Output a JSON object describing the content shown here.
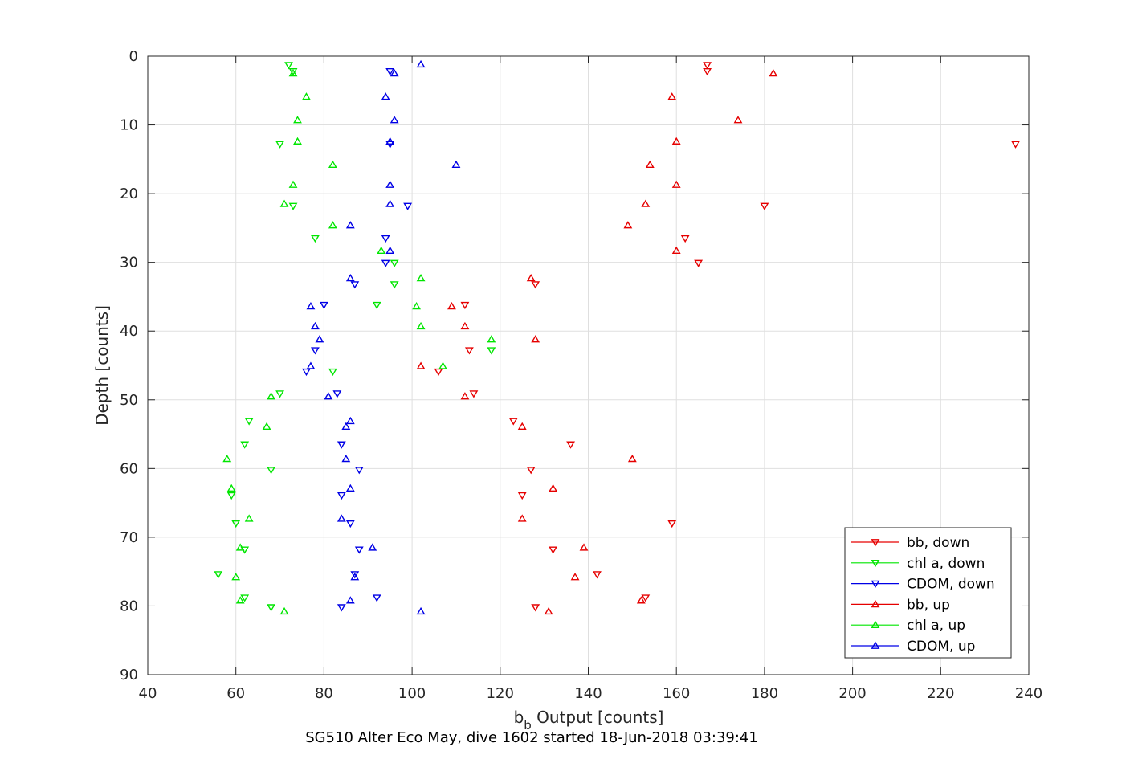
{
  "caption": "SG510 Alter Eco May, dive 1602 started 18-Jun-2018 03:39:41",
  "chart_data": {
    "type": "scatter",
    "xlabel_main": "b",
    "xlabel_sub": "b",
    "xlabel_rest": " Output [counts]",
    "ylabel": "Depth [counts]",
    "xlim": [
      40,
      240
    ],
    "ylim": [
      0,
      90
    ],
    "y_reversed": true,
    "grid": true,
    "xticks": [
      "40",
      "60",
      "80",
      "100",
      "120",
      "140",
      "160",
      "180",
      "200",
      "220",
      "240"
    ],
    "yticks": [
      "0",
      "10",
      "20",
      "30",
      "40",
      "50",
      "60",
      "70",
      "80",
      "90"
    ],
    "legend_position": "bottom-right",
    "series": [
      {
        "name": "bb, down",
        "color": "#e60000",
        "marker": "triangle-down",
        "points": [
          [
            167,
            1.3
          ],
          [
            167,
            2.2
          ],
          [
            237,
            12.8
          ],
          [
            180,
            21.8
          ],
          [
            162,
            26.5
          ],
          [
            165,
            30.1
          ],
          [
            128,
            33.2
          ],
          [
            112,
            36.2
          ],
          [
            113,
            42.8
          ],
          [
            106,
            45.9
          ],
          [
            114,
            49.1
          ],
          [
            123,
            53.1
          ],
          [
            136,
            56.5
          ],
          [
            127,
            60.2
          ],
          [
            125,
            63.9
          ],
          [
            159,
            68.0
          ],
          [
            132,
            71.8
          ],
          [
            142,
            75.4
          ],
          [
            153,
            78.8
          ],
          [
            128,
            80.2
          ]
        ]
      },
      {
        "name": "chl a, down",
        "color": "#00e600",
        "marker": "triangle-down",
        "points": [
          [
            72,
            1.3
          ],
          [
            73,
            2.2
          ],
          [
            70,
            12.8
          ],
          [
            73,
            21.8
          ],
          [
            78,
            26.5
          ],
          [
            96,
            30.1
          ],
          [
            96,
            33.2
          ],
          [
            92,
            36.2
          ],
          [
            118,
            42.8
          ],
          [
            82,
            45.9
          ],
          [
            70,
            49.1
          ],
          [
            63,
            53.1
          ],
          [
            62,
            56.5
          ],
          [
            68,
            60.2
          ],
          [
            59,
            63.9
          ],
          [
            60,
            68.0
          ],
          [
            62,
            71.8
          ],
          [
            56,
            75.4
          ],
          [
            62,
            78.8
          ],
          [
            68,
            80.2
          ]
        ]
      },
      {
        "name": "CDOM, down",
        "color": "#0000e6",
        "marker": "triangle-down",
        "points": [
          [
            95,
            2.2
          ],
          [
            95,
            12.8
          ],
          [
            99,
            21.8
          ],
          [
            94,
            26.5
          ],
          [
            94,
            30.1
          ],
          [
            87,
            33.2
          ],
          [
            80,
            36.2
          ],
          [
            78,
            42.8
          ],
          [
            76,
            45.9
          ],
          [
            83,
            49.1
          ],
          [
            84,
            56.5
          ],
          [
            88,
            60.2
          ],
          [
            84,
            63.9
          ],
          [
            86,
            68.0
          ],
          [
            88,
            71.8
          ],
          [
            87,
            75.4
          ],
          [
            92,
            78.8
          ],
          [
            84,
            80.2
          ]
        ]
      },
      {
        "name": "bb, up",
        "color": "#e60000",
        "marker": "triangle-up",
        "points": [
          [
            182,
            2.5
          ],
          [
            159,
            5.9
          ],
          [
            174,
            9.3
          ],
          [
            160,
            12.4
          ],
          [
            154,
            15.8
          ],
          [
            160,
            18.7
          ],
          [
            153,
            21.5
          ],
          [
            149,
            24.6
          ],
          [
            160,
            28.3
          ],
          [
            127,
            32.3
          ],
          [
            109,
            36.4
          ],
          [
            112,
            39.3
          ],
          [
            128,
            41.2
          ],
          [
            102,
            45.1
          ],
          [
            112,
            49.5
          ],
          [
            125,
            53.9
          ],
          [
            150,
            58.6
          ],
          [
            132,
            62.9
          ],
          [
            125,
            67.3
          ],
          [
            139,
            71.5
          ],
          [
            137,
            75.8
          ],
          [
            152,
            79.2
          ],
          [
            131,
            80.8
          ]
        ]
      },
      {
        "name": "chl a, up",
        "color": "#00e600",
        "marker": "triangle-up",
        "points": [
          [
            73,
            2.5
          ],
          [
            76,
            5.9
          ],
          [
            74,
            9.3
          ],
          [
            74,
            12.4
          ],
          [
            82,
            15.8
          ],
          [
            73,
            18.7
          ],
          [
            71,
            21.5
          ],
          [
            82,
            24.6
          ],
          [
            93,
            28.3
          ],
          [
            102,
            32.3
          ],
          [
            101,
            36.4
          ],
          [
            102,
            39.3
          ],
          [
            118,
            41.2
          ],
          [
            107,
            45.1
          ],
          [
            68,
            49.5
          ],
          [
            67,
            53.9
          ],
          [
            58,
            58.6
          ],
          [
            59,
            62.9
          ],
          [
            63,
            67.3
          ],
          [
            61,
            71.5
          ],
          [
            60,
            75.8
          ],
          [
            61,
            79.2
          ],
          [
            71,
            80.8
          ]
        ]
      },
      {
        "name": "CDOM, up",
        "color": "#0000e6",
        "marker": "triangle-up",
        "points": [
          [
            102,
            1.2
          ],
          [
            96,
            2.5
          ],
          [
            94,
            5.9
          ],
          [
            96,
            9.3
          ],
          [
            95,
            12.4
          ],
          [
            110,
            15.8
          ],
          [
            95,
            18.7
          ],
          [
            95,
            21.5
          ],
          [
            86,
            24.6
          ],
          [
            95,
            28.3
          ],
          [
            86,
            32.3
          ],
          [
            77,
            36.4
          ],
          [
            78,
            39.3
          ],
          [
            79,
            41.2
          ],
          [
            77,
            45.1
          ],
          [
            81,
            49.5
          ],
          [
            86,
            53.1
          ],
          [
            85,
            53.9
          ],
          [
            85,
            58.6
          ],
          [
            86,
            62.9
          ],
          [
            84,
            67.3
          ],
          [
            91,
            71.5
          ],
          [
            87,
            75.8
          ],
          [
            86,
            79.2
          ],
          [
            102,
            80.8
          ]
        ]
      }
    ]
  }
}
